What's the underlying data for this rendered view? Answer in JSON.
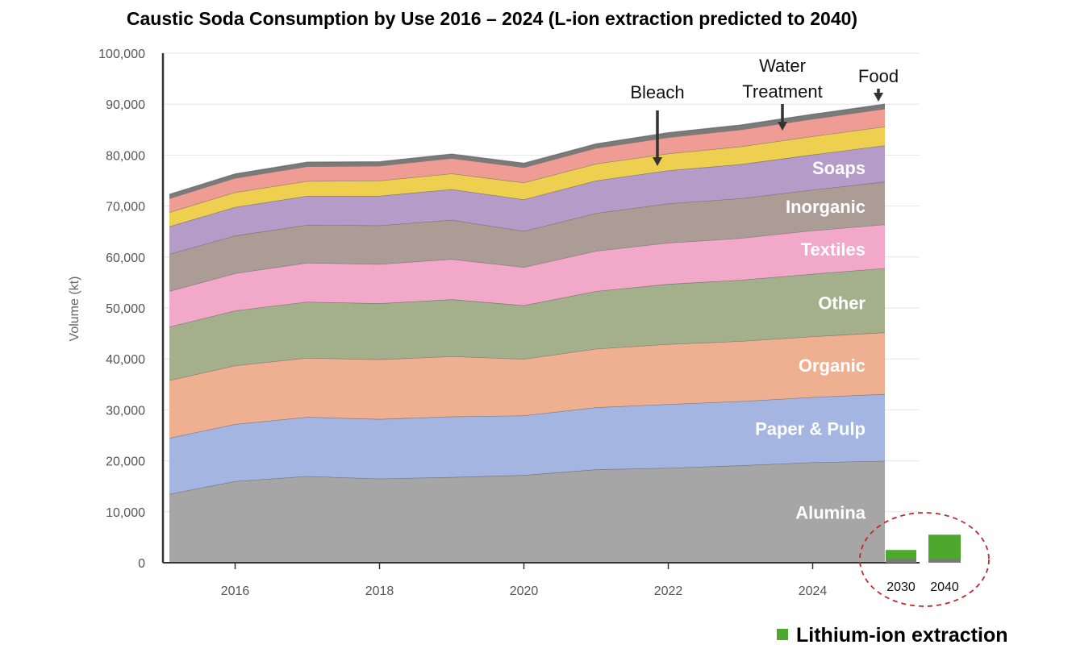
{
  "chart_data": {
    "type": "area",
    "stacked": true,
    "title": "Caustic Soda Consumption by Use 2016 – 2024 (L-ion extraction predicted to 2040)",
    "xlabel": "",
    "ylabel": "Volume (kt)",
    "xlim": [
      2015,
      2025
    ],
    "ylim": [
      0,
      100000
    ],
    "x": [
      2015,
      2016,
      2017,
      2018,
      2019,
      2020,
      2021,
      2022,
      2023,
      2024,
      2025
    ],
    "x_ticks": [
      2016,
      2018,
      2020,
      2022,
      2024
    ],
    "x_tick_labels": [
      "2016",
      "2018",
      "2020",
      "2022",
      "2024"
    ],
    "y_ticks": [
      0,
      10000,
      20000,
      30000,
      40000,
      50000,
      60000,
      70000,
      80000,
      90000,
      100000
    ],
    "y_tick_labels": [
      "0",
      "10,000",
      "20,000",
      "30,000",
      "40,000",
      "50,000",
      "60,000",
      "70,000",
      "80,000",
      "90,000",
      "100,000"
    ],
    "series": [
      {
        "name": "Alumina",
        "label": "Alumina",
        "color": "#a6a6a6",
        "values": [
          13500,
          16000,
          17000,
          16500,
          16800,
          17200,
          18300,
          18600,
          19100,
          19700,
          20000
        ]
      },
      {
        "name": "Paper & Pulp",
        "label": "Paper & Pulp",
        "color": "#a3b5e0",
        "values": [
          11000,
          11200,
          11600,
          11700,
          11900,
          11700,
          12200,
          12500,
          12600,
          12800,
          13100
        ]
      },
      {
        "name": "Organic",
        "label": "Organic",
        "color": "#eeb090",
        "values": [
          11300,
          11500,
          11600,
          11700,
          11800,
          11100,
          11500,
          11800,
          11800,
          11900,
          12100
        ]
      },
      {
        "name": "Other",
        "label": "Other",
        "color": "#a4b08c",
        "values": [
          10500,
          10800,
          11000,
          11000,
          11200,
          10500,
          11300,
          11800,
          12000,
          12300,
          12600
        ]
      },
      {
        "name": "Textiles",
        "label": "Textiles",
        "color": "#f2a8c8",
        "values": [
          7000,
          7300,
          7700,
          7700,
          7900,
          7500,
          7900,
          8100,
          8200,
          8500,
          8600
        ]
      },
      {
        "name": "Inorganic",
        "label": "Inorganic",
        "color": "#ab9c96",
        "values": [
          7300,
          7400,
          7400,
          7600,
          7700,
          7100,
          7400,
          7700,
          7800,
          8000,
          8400
        ]
      },
      {
        "name": "Soaps",
        "label": "Soaps",
        "color": "#b59cc8",
        "values": [
          5400,
          5600,
          5700,
          5800,
          6000,
          6200,
          6400,
          6500,
          6700,
          6900,
          7100
        ]
      },
      {
        "name": "Bleach",
        "label": "Bleach",
        "color": "#eecf50",
        "values": [
          2800,
          2900,
          2900,
          3000,
          3100,
          3300,
          3300,
          3300,
          3500,
          3600,
          3700
        ]
      },
      {
        "name": "Water Treatment",
        "label": "Water\nTreatment",
        "color": "#ef9d94",
        "values": [
          2700,
          2800,
          2900,
          2900,
          3000,
          3000,
          3100,
          3200,
          3300,
          3400,
          3500
        ]
      },
      {
        "name": "Food",
        "label": "Food",
        "color": "#7a7a7a",
        "values": [
          800,
          800,
          800,
          800,
          800,
          800,
          800,
          900,
          900,
          900,
          900
        ]
      }
    ],
    "inset_bars": {
      "categories": [
        "2030",
        "2040"
      ],
      "values": [
        2500,
        5500
      ],
      "color": "#4ea82e",
      "base_color": "#7a7a7a",
      "legend": "Lithium-ion extraction"
    },
    "annotations": [
      "Bleach",
      "Water\nTreatment",
      "Food"
    ]
  }
}
